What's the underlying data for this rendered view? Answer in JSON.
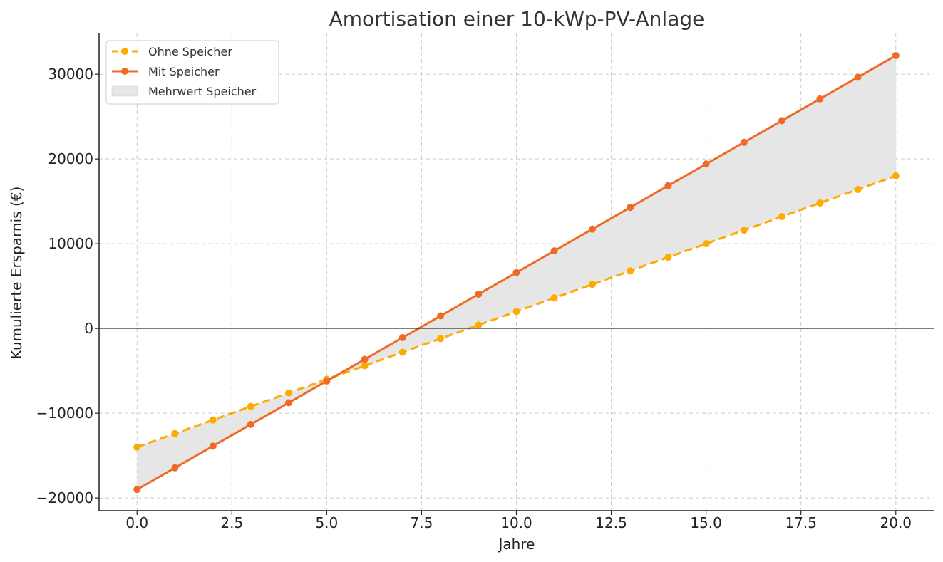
{
  "chart_data": {
    "type": "line",
    "title": "Amortisation einer 10-kWp-PV-Anlage",
    "xlabel": "Jahre",
    "ylabel": "Kumulierte Ersparnis (€)",
    "xlim": [
      -1,
      21
    ],
    "ylim": [
      -21500,
      34800
    ],
    "x_ticks": [
      0,
      2.5,
      5,
      7.5,
      10,
      12.5,
      15,
      17.5,
      20
    ],
    "x_tick_labels": [
      "0.0",
      "2.5",
      "5.0",
      "7.5",
      "10.0",
      "12.5",
      "15.0",
      "17.5",
      "20.0"
    ],
    "y_ticks": [
      -20000,
      -10000,
      0,
      10000,
      20000,
      30000
    ],
    "y_tick_labels": [
      "−20000",
      "−10000",
      "0",
      "10000",
      "20000",
      "30000"
    ],
    "grid": true,
    "zero_line": true,
    "legend_position": "top-left",
    "x": [
      0,
      1,
      2,
      3,
      4,
      5,
      6,
      7,
      8,
      9,
      10,
      11,
      12,
      13,
      14,
      15,
      16,
      17,
      18,
      19,
      20
    ],
    "series": [
      {
        "name": "Ohne Speicher",
        "style": "dashed",
        "color": "#FFAA00",
        "values": [
          -14000,
          -12400,
          -10800,
          -9200,
          -7600,
          -6000,
          -4400,
          -2800,
          -1200,
          400,
          2000,
          3600,
          5200,
          6800,
          8400,
          10000,
          11600,
          13200,
          14800,
          16400,
          18000
        ]
      },
      {
        "name": "Mit Speicher",
        "style": "solid",
        "color": "#F06A27",
        "values": [
          -19000,
          -16440,
          -13880,
          -11320,
          -8760,
          -6200,
          -3640,
          -1080,
          1480,
          4040,
          6600,
          9160,
          11720,
          14280,
          16840,
          19400,
          21960,
          24520,
          27080,
          29640,
          32200
        ]
      }
    ],
    "fill": {
      "name": "Mehrwert Speicher",
      "color": "#e6e6e6",
      "between": [
        "Ohne Speicher",
        "Mit Speicher"
      ]
    }
  }
}
